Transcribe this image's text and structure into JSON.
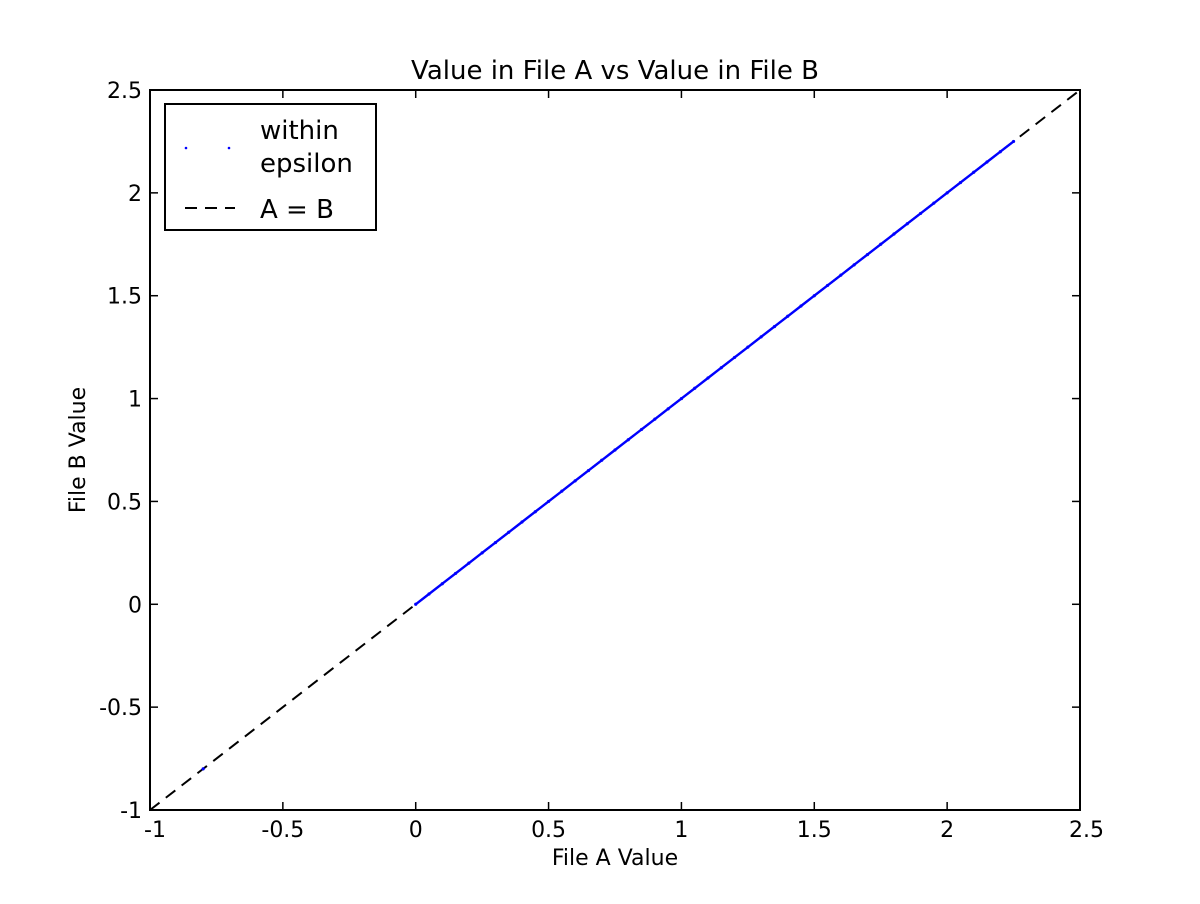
{
  "chart_data": {
    "type": "scatter",
    "title": "Value in File A vs Value in File B",
    "xlabel": "File A Value",
    "ylabel": "File B Value",
    "xlim": [
      -1,
      2.5
    ],
    "ylim": [
      -1,
      2.5
    ],
    "xticks": [
      -1,
      -0.5,
      0,
      0.5,
      1,
      1.5,
      2,
      2.5
    ],
    "yticks": [
      -1,
      -0.5,
      0,
      0.5,
      1,
      1.5,
      2,
      2.5
    ],
    "xtick_labels": [
      "-1",
      "-0.5",
      "0",
      "0.5",
      "1",
      "1.5",
      "2",
      "2.5"
    ],
    "ytick_labels": [
      "-1",
      "-0.5",
      "0",
      "0.5",
      "1",
      "1.5",
      "2",
      "2.5"
    ],
    "grid": false,
    "legend_position": "top-left",
    "series": [
      {
        "name": "within epsilon",
        "kind": "points",
        "color": "#0000ff",
        "x": [
          -0.8,
          0.0,
          0.05,
          0.1,
          0.15,
          0.2,
          0.25,
          0.3,
          0.35,
          0.4,
          0.45,
          0.5,
          0.55,
          0.6,
          0.65,
          0.7,
          0.75,
          0.8,
          0.85,
          0.9,
          0.95,
          1.0,
          1.05,
          1.1,
          1.15,
          1.2,
          1.25,
          1.3,
          1.35,
          1.4,
          1.45,
          1.5,
          1.55,
          1.6,
          1.65,
          1.7,
          1.75,
          1.8,
          1.85,
          1.9,
          1.95,
          2.0,
          2.05,
          2.1,
          2.15,
          2.2,
          2.25
        ],
        "y": [
          -0.8,
          0.0,
          0.05,
          0.1,
          0.15,
          0.2,
          0.25,
          0.3,
          0.35,
          0.4,
          0.45,
          0.5,
          0.55,
          0.6,
          0.65,
          0.7,
          0.75,
          0.8,
          0.85,
          0.9,
          0.95,
          1.0,
          1.05,
          1.1,
          1.15,
          1.2,
          1.25,
          1.3,
          1.35,
          1.4,
          1.45,
          1.5,
          1.55,
          1.6,
          1.65,
          1.7,
          1.75,
          1.8,
          1.85,
          1.9,
          1.95,
          2.0,
          2.05,
          2.1,
          2.15,
          2.2,
          2.25
        ]
      },
      {
        "name": "A = B",
        "kind": "dashed-line",
        "color": "#000000",
        "x": [
          -1,
          2.5
        ],
        "y": [
          -1,
          2.5
        ]
      }
    ],
    "legend_entries": [
      "within",
      "epsilon",
      "A = B"
    ]
  }
}
